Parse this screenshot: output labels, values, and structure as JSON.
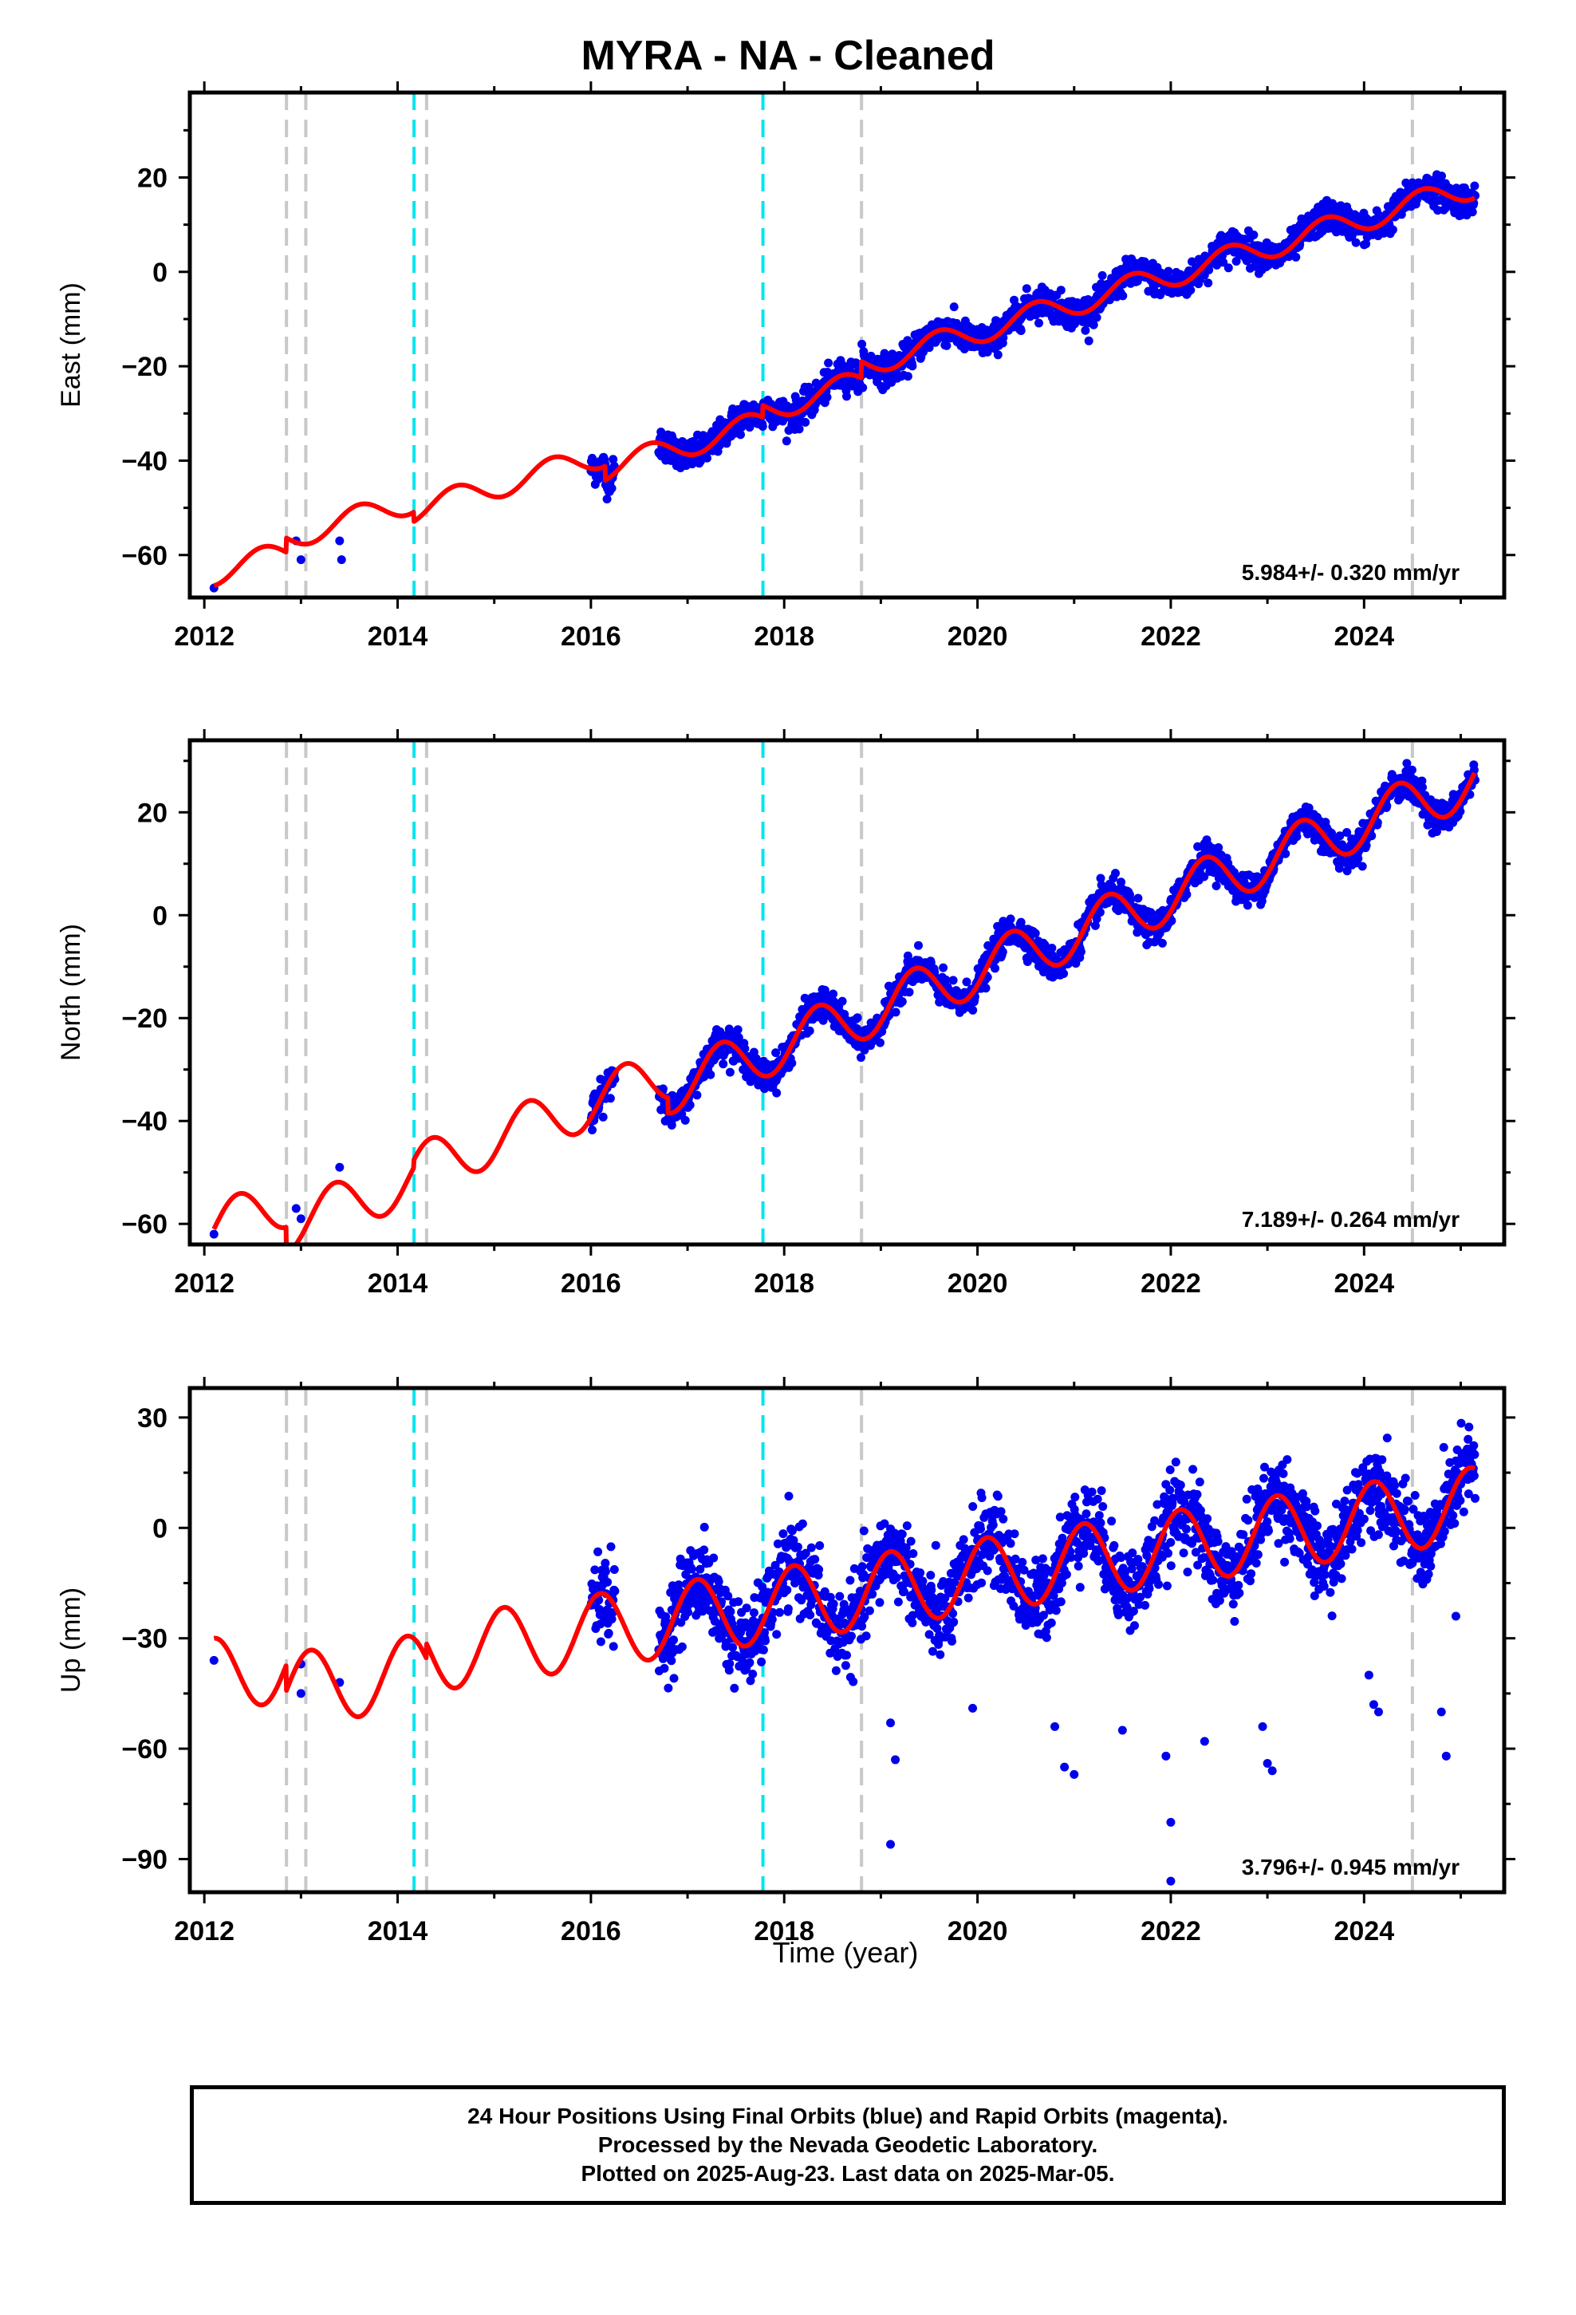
{
  "title": "MYRA  - NA - Cleaned",
  "xlabel": "Time (year)",
  "footer": {
    "line1": "24 Hour Positions Using Final Orbits (blue) and Rapid Orbits (magenta).",
    "line2": "Processed by the Nevada Geodetic Laboratory.",
    "line3": "Plotted on 2025-Aug-23. Last data on 2025-Mar-05."
  },
  "colors": {
    "data": "#0000ee",
    "model": "#ff0000",
    "step_equipment": "#c8c8c8",
    "step_earthquake": "#00e5ee"
  },
  "chart_data": [
    {
      "type": "scatter",
      "panel": "east",
      "ylabel": "East (mm)",
      "xlim": [
        2011.85,
        2025.45
      ],
      "ylim": [
        -69,
        38
      ],
      "xticks": [
        2012,
        2014,
        2016,
        2018,
        2020,
        2022,
        2024
      ],
      "yticks": [
        -60,
        -40,
        -20,
        0,
        20
      ],
      "rate_label": "5.984+/- 0.320 mm/yr",
      "steps_equipment": [
        2012.85,
        2013.05,
        2014.3,
        2018.8,
        2024.5
      ],
      "steps_earthquake": [
        2014.17,
        2017.78
      ],
      "model": {
        "x0": 2012.1,
        "y0": -66.5,
        "rate": 5.984,
        "annual_amp": 2.6,
        "annual_phase": 0.35,
        "offsets": [
          {
            "t": 2012.85,
            "dy": 3.0
          },
          {
            "t": 2014.17,
            "dy": -2.0
          },
          {
            "t": 2016.15,
            "dy": -3.0
          },
          {
            "t": 2017.78,
            "dy": 2.5
          },
          {
            "t": 2018.8,
            "dy": 3.5
          }
        ],
        "end": 2025.15
      },
      "series": [
        {
          "name": "Final Orbits (blue)",
          "sparse": [
            [
              2012.1,
              -67
            ],
            [
              2012.95,
              -57
            ],
            [
              2013.0,
              -61
            ],
            [
              2013.4,
              -57
            ],
            [
              2013.42,
              -61
            ]
          ],
          "dense_start": 2016.0,
          "dense_end": 2025.15,
          "scatter_sd": 1.6
        }
      ]
    },
    {
      "type": "scatter",
      "panel": "north",
      "ylabel": "North (mm)",
      "xlim": [
        2011.85,
        2025.45
      ],
      "ylim": [
        -64,
        34
      ],
      "xticks": [
        2012,
        2014,
        2016,
        2018,
        2020,
        2022,
        2024
      ],
      "yticks": [
        -60,
        -40,
        -20,
        0,
        20
      ],
      "rate_label": "7.189+/- 0.264 mm/yr",
      "steps_equipment": [
        2012.85,
        2013.05,
        2014.3,
        2018.8,
        2024.5
      ],
      "steps_earthquake": [
        2014.17,
        2017.78
      ],
      "model": {
        "x0": 2012.1,
        "y0": -61,
        "rate": 7.189,
        "annual_amp": 5.0,
        "annual_phase": 0.1,
        "offsets": [
          {
            "t": 2012.85,
            "dy": -5.0
          },
          {
            "t": 2014.17,
            "dy": 1.5
          },
          {
            "t": 2016.8,
            "dy": -3.0
          }
        ],
        "end": 2025.15
      },
      "series": [
        {
          "name": "Final Orbits (blue)",
          "sparse": [
            [
              2012.1,
              -62
            ],
            [
              2012.95,
              -57
            ],
            [
              2013.0,
              -59
            ],
            [
              2013.4,
              -49
            ]
          ],
          "dense_start": 2016.0,
          "dense_end": 2025.15,
          "scatter_sd": 1.5
        }
      ]
    },
    {
      "type": "scatter",
      "panel": "up",
      "ylabel": "Up (mm)",
      "xlim": [
        2011.85,
        2025.45
      ],
      "ylim": [
        -99,
        38
      ],
      "xticks": [
        2012,
        2014,
        2016,
        2018,
        2020,
        2022,
        2024
      ],
      "yticks": [
        -90,
        -60,
        -30,
        0,
        30
      ],
      "rate_label": "3.796+/- 0.945 mm/yr",
      "steps_equipment": [
        2012.85,
        2013.05,
        2014.3,
        2018.8,
        2024.5
      ],
      "steps_earthquake": [
        2014.17,
        2017.78
      ],
      "model": {
        "x0": 2012.1,
        "y0": -30,
        "rate": 3.796,
        "annual_amp": 10.0,
        "annual_phase": 0.85,
        "offsets": [
          {
            "t": 2012.85,
            "dy": -7.0
          },
          {
            "t": 2014.3,
            "dy": 4.0
          }
        ],
        "end": 2025.15
      },
      "series": [
        {
          "name": "Final Orbits (blue)",
          "sparse": [
            [
              2012.1,
              -36
            ],
            [
              2013.0,
              -37
            ],
            [
              2013.0,
              -45
            ],
            [
              2013.4,
              -42
            ]
          ],
          "dense_start": 2016.0,
          "dense_end": 2025.15,
          "scatter_sd": 5.5,
          "outliers": [
            [
              2019.1,
              -53
            ],
            [
              2019.15,
              -63
            ],
            [
              2019.1,
              -86
            ],
            [
              2019.95,
              -49
            ],
            [
              2020.8,
              -54
            ],
            [
              2020.9,
              -65
            ],
            [
              2021.0,
              -67
            ],
            [
              2021.5,
              -55
            ],
            [
              2021.95,
              -62
            ],
            [
              2022.0,
              -80
            ],
            [
              2022.0,
              -96
            ],
            [
              2022.35,
              -58
            ],
            [
              2022.95,
              -54
            ],
            [
              2023.0,
              -64
            ],
            [
              2023.05,
              -66
            ],
            [
              2024.05,
              -40
            ],
            [
              2024.1,
              -48
            ],
            [
              2024.15,
              -50
            ],
            [
              2024.8,
              -50
            ],
            [
              2024.85,
              -62
            ],
            [
              2024.95,
              -24
            ]
          ]
        }
      ]
    }
  ]
}
